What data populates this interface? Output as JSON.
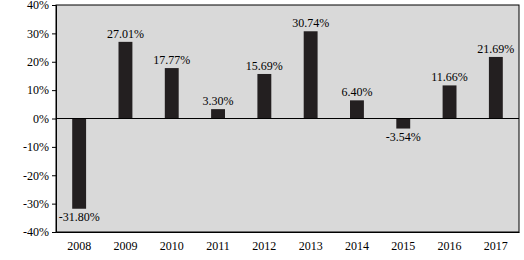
{
  "chart_data": {
    "type": "bar",
    "categories": [
      "2008",
      "2009",
      "2010",
      "2011",
      "2012",
      "2013",
      "2014",
      "2015",
      "2016",
      "2017"
    ],
    "values": [
      -31.8,
      27.01,
      17.77,
      3.3,
      15.69,
      30.74,
      6.4,
      -3.54,
      11.66,
      21.69
    ],
    "value_labels": [
      "-31.80%",
      "27.01%",
      "17.77%",
      "3.30%",
      "15.69%",
      "30.74%",
      "6.40%",
      "-3.54%",
      "11.66%",
      "21.69%"
    ],
    "data_labels": true,
    "color": "#231f20",
    "ylim": [
      -40,
      40
    ],
    "yticks": [
      {
        "value": -40,
        "label": "-40%"
      },
      {
        "value": -30,
        "label": "-30%"
      },
      {
        "value": -20,
        "label": "-20%"
      },
      {
        "value": -10,
        "label": "-10%"
      },
      {
        "value": 0,
        "label": "0%"
      },
      {
        "value": 10,
        "label": "10%"
      },
      {
        "value": 20,
        "label": "20%"
      },
      {
        "value": 30,
        "label": "30%"
      },
      {
        "value": 40,
        "label": "40%"
      }
    ],
    "grid": false
  }
}
